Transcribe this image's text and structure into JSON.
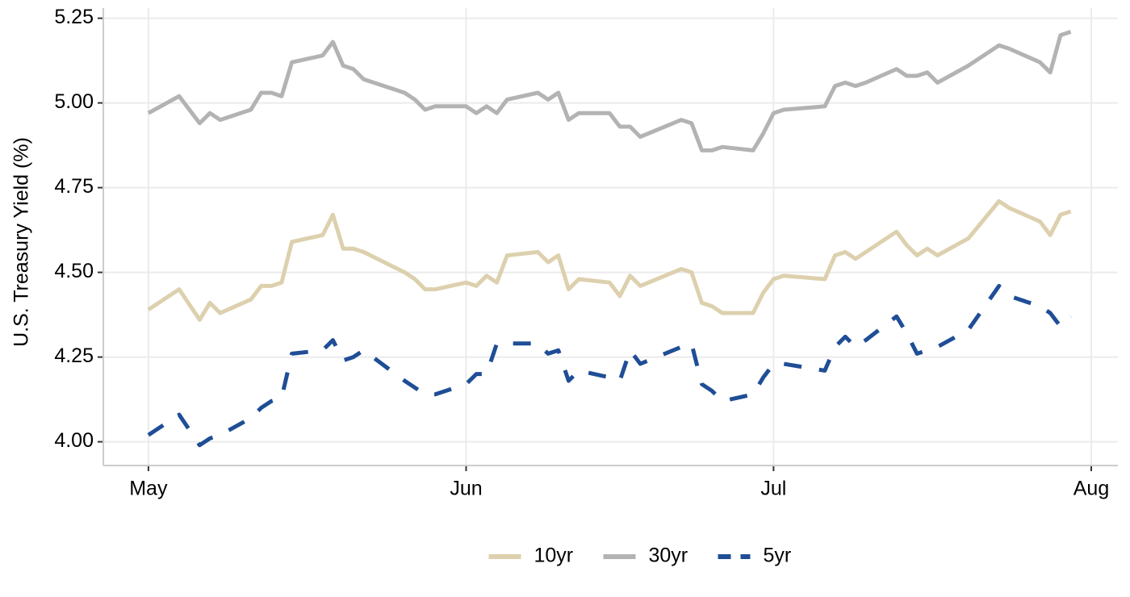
{
  "chart_data": {
    "type": "line",
    "y_label": "U.S. Treasury Yield (%)",
    "x": [
      0,
      3,
      5,
      6,
      7,
      10,
      11,
      12,
      13,
      14,
      17,
      18,
      19,
      20,
      21,
      25,
      26,
      27,
      28,
      31,
      32,
      33,
      34,
      35,
      38,
      39,
      40,
      41,
      42,
      45,
      46,
      47,
      48,
      52,
      53,
      54,
      55,
      56,
      59,
      60,
      61,
      62,
      66,
      67,
      68,
      69,
      70,
      73,
      74,
      75,
      76,
      77,
      80,
      83,
      84,
      87,
      88,
      89,
      90
    ],
    "series": [
      {
        "name": "10yr",
        "color": "#ddd0ae",
        "style": "solid",
        "values": [
          4.39,
          4.45,
          4.36,
          4.41,
          4.38,
          4.42,
          4.46,
          4.46,
          4.47,
          4.59,
          4.61,
          4.67,
          4.57,
          4.57,
          4.56,
          4.5,
          4.48,
          4.45,
          4.45,
          4.47,
          4.46,
          4.49,
          4.47,
          4.55,
          4.56,
          4.53,
          4.55,
          4.45,
          4.48,
          4.47,
          4.43,
          4.49,
          4.46,
          4.51,
          4.5,
          4.41,
          4.4,
          4.38,
          4.38,
          4.44,
          4.48,
          4.49,
          4.48,
          4.55,
          4.56,
          4.54,
          4.56,
          4.62,
          4.58,
          4.55,
          4.57,
          4.55,
          4.6,
          4.71,
          4.69,
          4.65,
          4.61,
          4.67,
          4.68
        ]
      },
      {
        "name": "30yr",
        "color": "#b3b3b3",
        "style": "solid",
        "values": [
          4.97,
          5.02,
          4.94,
          4.97,
          4.95,
          4.98,
          5.03,
          5.03,
          5.02,
          5.12,
          5.14,
          5.18,
          5.11,
          5.1,
          5.07,
          5.03,
          5.01,
          4.98,
          4.99,
          4.99,
          4.97,
          4.99,
          4.97,
          5.01,
          5.03,
          5.01,
          5.03,
          4.95,
          4.97,
          4.97,
          4.93,
          4.93,
          4.9,
          4.95,
          4.94,
          4.86,
          4.86,
          4.87,
          4.86,
          4.91,
          4.97,
          4.98,
          4.99,
          5.05,
          5.06,
          5.05,
          5.06,
          5.1,
          5.08,
          5.08,
          5.09,
          5.06,
          5.11,
          5.17,
          5.16,
          5.12,
          5.09,
          5.2,
          5.21
        ]
      },
      {
        "name": "5yr",
        "color": "#1f4e96",
        "style": "dashed",
        "values": [
          4.02,
          4.08,
          3.99,
          4.01,
          4.02,
          4.07,
          4.1,
          4.12,
          4.13,
          4.26,
          4.27,
          4.3,
          4.24,
          4.25,
          4.27,
          4.18,
          4.16,
          4.14,
          4.14,
          4.17,
          4.2,
          4.2,
          4.29,
          4.29,
          4.29,
          4.26,
          4.27,
          4.18,
          4.21,
          4.19,
          4.18,
          4.27,
          4.23,
          4.28,
          4.29,
          4.17,
          4.15,
          4.12,
          4.14,
          4.19,
          4.23,
          4.23,
          4.21,
          4.28,
          4.31,
          4.28,
          4.3,
          4.37,
          4.32,
          4.26,
          4.27,
          4.28,
          4.33,
          4.46,
          4.43,
          4.4,
          4.38,
          4.34,
          4.37
        ]
      }
    ],
    "xlim": [
      -4.4,
      94.6
    ],
    "xticks": [
      {
        "value": 0,
        "label": "May"
      },
      {
        "value": 31,
        "label": "Jun"
      },
      {
        "value": 61,
        "label": "Jul"
      },
      {
        "value": 92,
        "label": "Aug"
      }
    ],
    "ylim": [
      3.93,
      5.28
    ],
    "yticks": [
      {
        "value": 4,
        "label": "4.00"
      },
      4.25,
      {
        "value": 4.5,
        "label": "4.50"
      },
      {
        "value": 4.75,
        "label": "4.75"
      },
      {
        "value": 5,
        "label": "5.00"
      },
      5.25
    ],
    "grid": true,
    "legend": "bottom"
  }
}
